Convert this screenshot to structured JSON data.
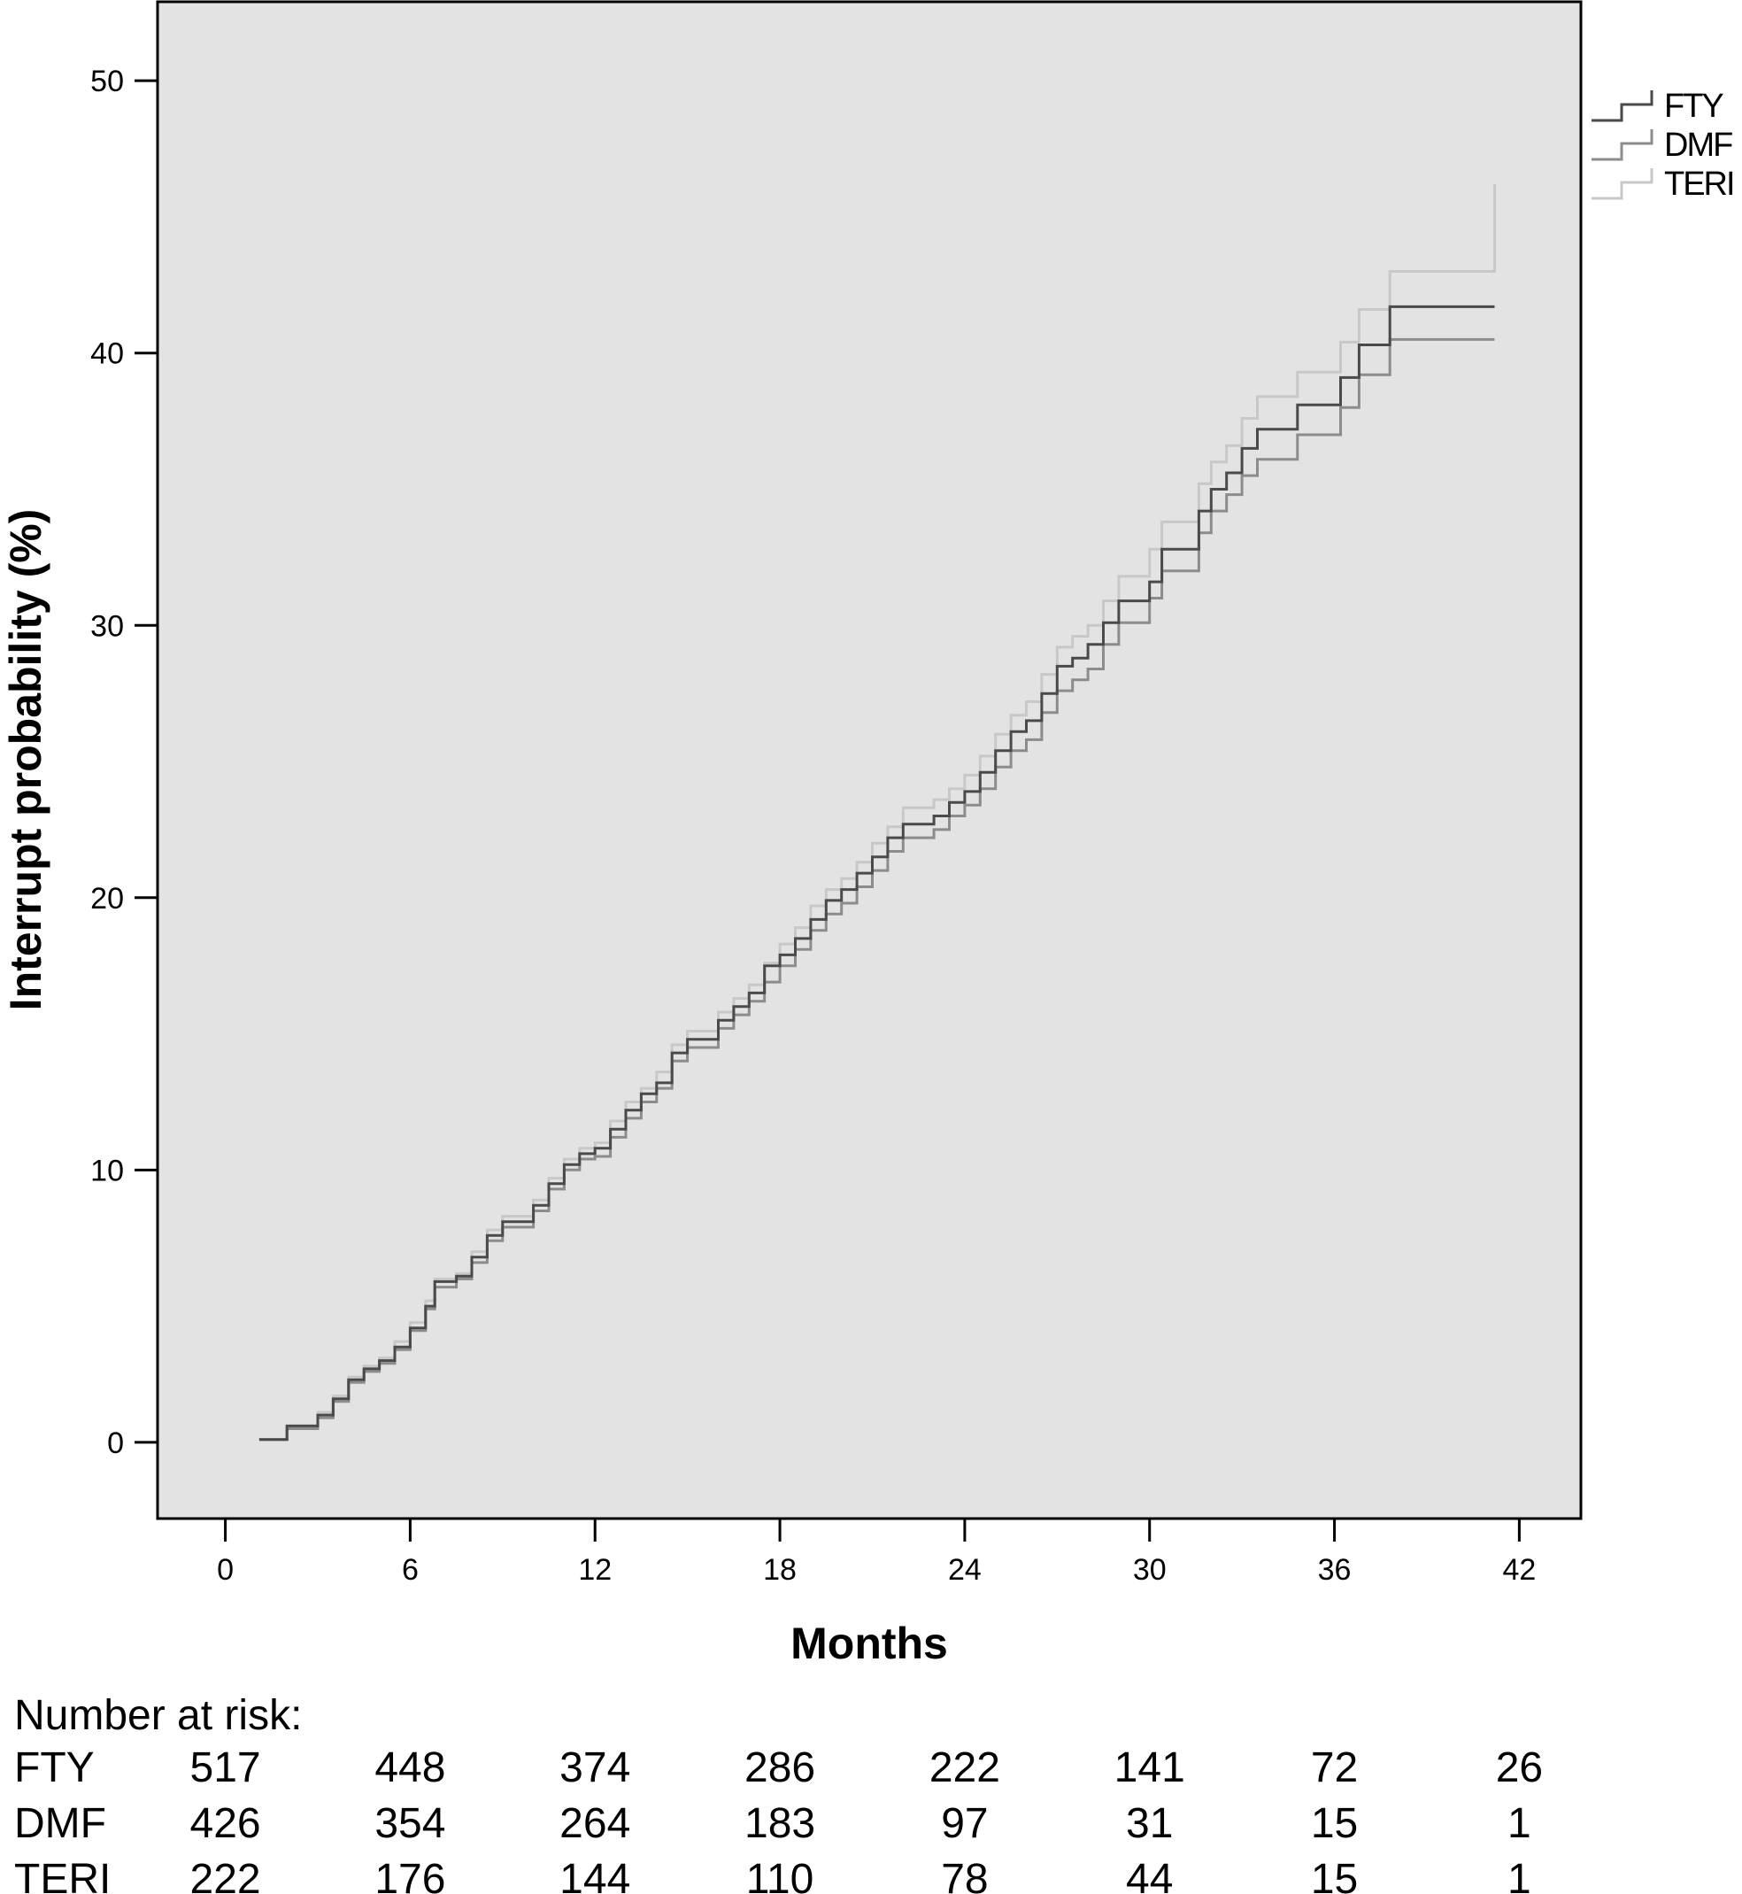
{
  "chart_data": {
    "type": "line",
    "step": true,
    "xlabel": "Months",
    "ylabel": "Interrupt probability (%)",
    "xlim": [
      -2.2,
      44
    ],
    "ylim": [
      -2.8,
      52.9
    ],
    "x_ticks": [
      0,
      6,
      12,
      18,
      24,
      30,
      36,
      42
    ],
    "y_ticks": [
      0,
      10,
      20,
      30,
      40,
      50
    ],
    "grid": false,
    "legend_position": "right, outside plot area, top",
    "plot_background": "#e3e3e3",
    "series": [
      {
        "name": "FTY",
        "color": "#4a4a4a",
        "points": [
          [
            1.1,
            0.1
          ],
          [
            2.0,
            0.6
          ],
          [
            3.0,
            1.0
          ],
          [
            3.5,
            1.6
          ],
          [
            4.0,
            2.3
          ],
          [
            4.5,
            2.7
          ],
          [
            5.0,
            3.0
          ],
          [
            5.5,
            3.5
          ],
          [
            6.0,
            4.2
          ],
          [
            6.5,
            5.0
          ],
          [
            6.8,
            5.9
          ],
          [
            7.5,
            6.1
          ],
          [
            8.0,
            6.8
          ],
          [
            8.5,
            7.6
          ],
          [
            9.0,
            8.1
          ],
          [
            10.0,
            8.7
          ],
          [
            10.5,
            9.5
          ],
          [
            11.0,
            10.2
          ],
          [
            11.5,
            10.6
          ],
          [
            12.0,
            10.8
          ],
          [
            12.5,
            11.5
          ],
          [
            13.0,
            12.2
          ],
          [
            13.5,
            12.8
          ],
          [
            14.0,
            13.2
          ],
          [
            14.5,
            14.3
          ],
          [
            15.0,
            14.8
          ],
          [
            16.0,
            15.5
          ],
          [
            16.5,
            16.0
          ],
          [
            17.0,
            16.5
          ],
          [
            17.5,
            17.5
          ],
          [
            18.0,
            17.9
          ],
          [
            18.5,
            18.5
          ],
          [
            19.0,
            19.2
          ],
          [
            19.5,
            19.9
          ],
          [
            20.0,
            20.3
          ],
          [
            20.5,
            20.9
          ],
          [
            21.0,
            21.5
          ],
          [
            21.5,
            22.2
          ],
          [
            22.0,
            22.7
          ],
          [
            23.0,
            23.0
          ],
          [
            23.5,
            23.5
          ],
          [
            24.0,
            23.9
          ],
          [
            24.5,
            24.6
          ],
          [
            25.0,
            25.4
          ],
          [
            25.5,
            26.1
          ],
          [
            26.0,
            26.5
          ],
          [
            26.5,
            27.5
          ],
          [
            27.0,
            28.5
          ],
          [
            27.5,
            28.8
          ],
          [
            28.0,
            29.3
          ],
          [
            28.5,
            30.1
          ],
          [
            29.0,
            30.9
          ],
          [
            30.0,
            31.6
          ],
          [
            30.4,
            32.8
          ],
          [
            31.6,
            34.2
          ],
          [
            32.0,
            35.0
          ],
          [
            32.5,
            35.6
          ],
          [
            33.0,
            36.5
          ],
          [
            33.5,
            37.2
          ],
          [
            34.8,
            38.1
          ],
          [
            36.2,
            39.1
          ],
          [
            36.8,
            40.3
          ],
          [
            37.8,
            41.7
          ],
          [
            41.2,
            41.7
          ]
        ]
      },
      {
        "name": "DMF",
        "color": "#8c8c8c",
        "points": [
          [
            1.1,
            0.1
          ],
          [
            2.0,
            0.5
          ],
          [
            3.0,
            0.9
          ],
          [
            3.5,
            1.5
          ],
          [
            4.0,
            2.2
          ],
          [
            4.5,
            2.6
          ],
          [
            5.0,
            2.9
          ],
          [
            5.5,
            3.4
          ],
          [
            6.0,
            4.1
          ],
          [
            6.5,
            4.9
          ],
          [
            6.8,
            5.7
          ],
          [
            7.5,
            6.0
          ],
          [
            8.0,
            6.6
          ],
          [
            8.5,
            7.4
          ],
          [
            9.0,
            7.9
          ],
          [
            10.0,
            8.5
          ],
          [
            10.5,
            9.3
          ],
          [
            11.0,
            10.0
          ],
          [
            11.5,
            10.4
          ],
          [
            12.0,
            10.5
          ],
          [
            12.5,
            11.2
          ],
          [
            13.0,
            11.9
          ],
          [
            13.5,
            12.5
          ],
          [
            14.0,
            13.0
          ],
          [
            14.5,
            14.0
          ],
          [
            15.0,
            14.5
          ],
          [
            16.0,
            15.2
          ],
          [
            16.5,
            15.7
          ],
          [
            17.0,
            16.2
          ],
          [
            17.5,
            16.9
          ],
          [
            18.0,
            17.5
          ],
          [
            18.5,
            18.1
          ],
          [
            19.0,
            18.8
          ],
          [
            19.5,
            19.4
          ],
          [
            20.0,
            19.8
          ],
          [
            20.5,
            20.4
          ],
          [
            21.0,
            21.0
          ],
          [
            21.5,
            21.7
          ],
          [
            22.0,
            22.2
          ],
          [
            23.0,
            22.5
          ],
          [
            23.5,
            23.0
          ],
          [
            24.0,
            23.4
          ],
          [
            24.5,
            24.0
          ],
          [
            25.0,
            24.8
          ],
          [
            25.5,
            25.4
          ],
          [
            26.0,
            25.8
          ],
          [
            26.5,
            26.8
          ],
          [
            27.0,
            27.6
          ],
          [
            27.5,
            28.0
          ],
          [
            28.0,
            28.4
          ],
          [
            28.5,
            29.3
          ],
          [
            29.0,
            30.1
          ],
          [
            30.0,
            31.0
          ],
          [
            30.4,
            32.0
          ],
          [
            31.6,
            33.4
          ],
          [
            32.0,
            34.2
          ],
          [
            32.5,
            34.8
          ],
          [
            33.0,
            35.5
          ],
          [
            33.5,
            36.1
          ],
          [
            34.8,
            37.0
          ],
          [
            36.2,
            38.0
          ],
          [
            36.8,
            39.2
          ],
          [
            37.8,
            40.5
          ],
          [
            41.2,
            40.5
          ]
        ]
      },
      {
        "name": "TERI",
        "color": "#c8c8c8",
        "points": [
          [
            1.1,
            0.1
          ],
          [
            2.0,
            0.6
          ],
          [
            3.0,
            1.1
          ],
          [
            3.5,
            1.7
          ],
          [
            4.0,
            2.4
          ],
          [
            4.5,
            2.8
          ],
          [
            5.0,
            3.1
          ],
          [
            5.5,
            3.7
          ],
          [
            6.0,
            4.4
          ],
          [
            6.5,
            5.2
          ],
          [
            6.8,
            6.0
          ],
          [
            7.5,
            6.2
          ],
          [
            8.0,
            7.0
          ],
          [
            8.5,
            7.8
          ],
          [
            9.0,
            8.3
          ],
          [
            10.0,
            8.9
          ],
          [
            10.5,
            9.7
          ],
          [
            11.0,
            10.4
          ],
          [
            11.5,
            10.8
          ],
          [
            12.0,
            11.0
          ],
          [
            12.5,
            11.8
          ],
          [
            13.0,
            12.5
          ],
          [
            13.5,
            13.0
          ],
          [
            14.0,
            13.6
          ],
          [
            14.5,
            14.6
          ],
          [
            15.0,
            15.1
          ],
          [
            16.0,
            15.8
          ],
          [
            16.5,
            16.3
          ],
          [
            17.0,
            16.8
          ],
          [
            17.5,
            17.6
          ],
          [
            18.0,
            18.3
          ],
          [
            18.5,
            18.9
          ],
          [
            19.0,
            19.7
          ],
          [
            19.5,
            20.3
          ],
          [
            20.0,
            20.7
          ],
          [
            20.5,
            21.3
          ],
          [
            21.0,
            22.0
          ],
          [
            21.5,
            22.6
          ],
          [
            22.0,
            23.3
          ],
          [
            23.0,
            23.6
          ],
          [
            23.5,
            24.0
          ],
          [
            24.0,
            24.5
          ],
          [
            24.5,
            25.2
          ],
          [
            25.0,
            26.0
          ],
          [
            25.5,
            26.7
          ],
          [
            26.0,
            27.2
          ],
          [
            26.5,
            28.2
          ],
          [
            27.0,
            29.2
          ],
          [
            27.5,
            29.6
          ],
          [
            28.0,
            30.0
          ],
          [
            28.5,
            30.9
          ],
          [
            29.0,
            31.8
          ],
          [
            30.0,
            32.8
          ],
          [
            30.4,
            33.8
          ],
          [
            31.6,
            35.2
          ],
          [
            32.0,
            36.0
          ],
          [
            32.5,
            36.6
          ],
          [
            33.0,
            37.6
          ],
          [
            33.5,
            38.4
          ],
          [
            34.8,
            39.3
          ],
          [
            36.2,
            40.4
          ],
          [
            36.8,
            41.6
          ],
          [
            37.8,
            43.0
          ],
          [
            41.2,
            43.0
          ],
          [
            41.2,
            46.2
          ]
        ]
      }
    ],
    "number_at_risk": {
      "title": "Number at risk:",
      "rows": [
        {
          "label": "FTY",
          "values": [
            "517",
            "448",
            "374",
            "286",
            "222",
            "141",
            "72",
            "26"
          ]
        },
        {
          "label": "DMF",
          "values": [
            "426",
            "354",
            "264",
            "183",
            "97",
            "31",
            "15",
            "1"
          ]
        },
        {
          "label": "TERI",
          "values": [
            "222",
            "176",
            "144",
            "110",
            "78",
            "44",
            "15",
            "1"
          ]
        }
      ]
    }
  }
}
